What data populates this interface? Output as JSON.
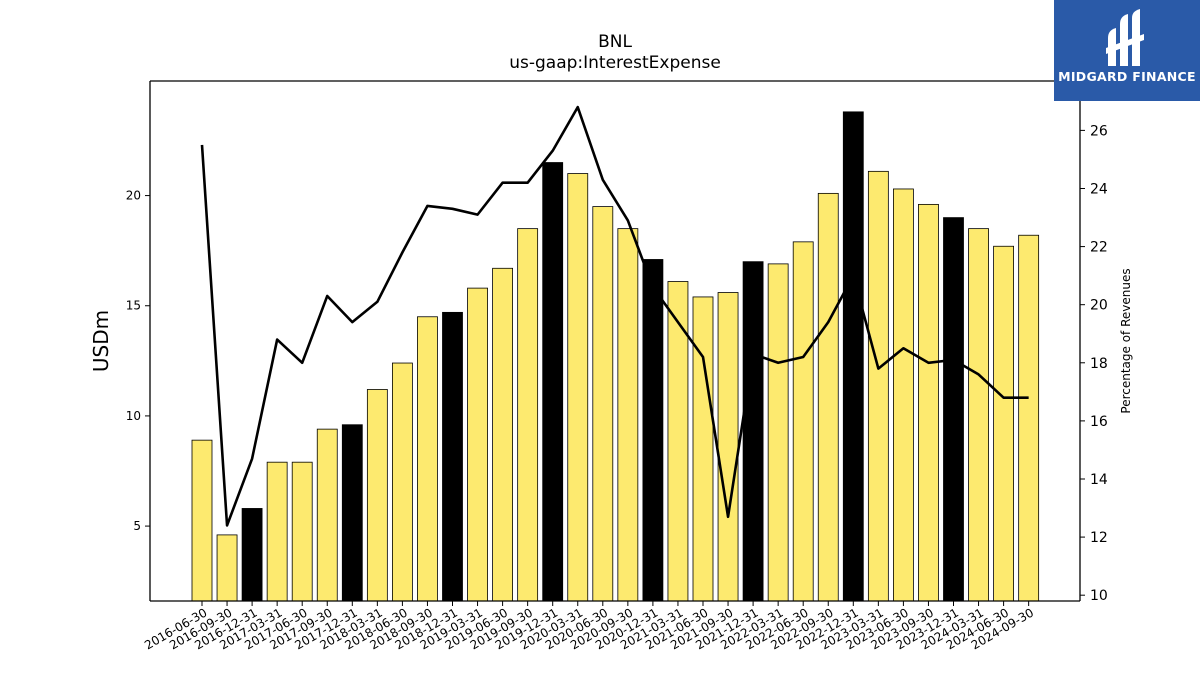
{
  "title": "BNL",
  "subtitle": "us-gaap:InterestExpense",
  "logo": {
    "text": "MIDGARD FINANCE",
    "icon": "midgard-logo-icon",
    "color": "#2a5aa8"
  },
  "colors": {
    "bar_default": "#fdea6f",
    "bar_highlight": "#000000",
    "line": "#000000"
  },
  "chart_data": {
    "type": "bar",
    "categories": [
      "2016-06-30",
      "2016-09-30",
      "2016-12-31",
      "2017-03-31",
      "2017-06-30",
      "2017-09-30",
      "2017-12-31",
      "2018-03-31",
      "2018-06-30",
      "2018-09-30",
      "2018-12-31",
      "2019-03-31",
      "2019-06-30",
      "2019-09-30",
      "2019-12-31",
      "2020-03-31",
      "2020-06-30",
      "2020-09-30",
      "2020-12-31",
      "2021-03-31",
      "2021-06-30",
      "2021-09-30",
      "2021-12-31",
      "2022-03-31",
      "2022-06-30",
      "2022-09-30",
      "2022-12-31",
      "2023-03-31",
      "2023-06-30",
      "2023-09-30",
      "2023-12-31",
      "2024-03-31",
      "2024-06-30",
      "2024-09-30"
    ],
    "series": [
      {
        "axis": "left",
        "type": "bar",
        "values": [
          8.9,
          4.6,
          5.8,
          7.9,
          7.9,
          9.4,
          9.6,
          11.2,
          12.4,
          14.5,
          14.7,
          15.8,
          16.7,
          18.5,
          21.5,
          21.0,
          19.5,
          18.5,
          17.1,
          16.1,
          15.4,
          15.6,
          17.0,
          16.9,
          17.9,
          20.1,
          23.8,
          21.1,
          20.3,
          19.6,
          19.0,
          18.5,
          17.7,
          18.2
        ],
        "highlight": [
          false,
          false,
          true,
          false,
          false,
          false,
          true,
          false,
          false,
          false,
          true,
          false,
          false,
          false,
          true,
          false,
          false,
          false,
          true,
          false,
          false,
          false,
          true,
          false,
          false,
          false,
          true,
          false,
          false,
          false,
          true,
          false,
          false,
          false
        ]
      },
      {
        "axis": "right",
        "type": "line",
        "values": [
          25.5,
          12.4,
          14.7,
          18.8,
          18.0,
          20.3,
          19.4,
          20.1,
          21.8,
          23.4,
          23.3,
          23.1,
          24.2,
          24.2,
          25.3,
          26.8,
          24.3,
          22.9,
          20.6,
          19.4,
          18.2,
          12.7,
          18.3,
          18.0,
          18.2,
          19.4,
          21.0,
          17.8,
          18.5,
          18.0,
          18.1,
          17.6,
          16.8,
          16.8
        ]
      }
    ],
    "ylabel": "USDm",
    "ylim": [
      1.6,
      25.2
    ],
    "yticks": [
      5,
      10,
      15,
      20
    ],
    "y2label": "Percentage of Revenues",
    "y2lim": [
      9.8,
      27.7
    ],
    "y2ticks": [
      10,
      12,
      14,
      16,
      18,
      20,
      22,
      24,
      26
    ],
    "grid": false
  }
}
